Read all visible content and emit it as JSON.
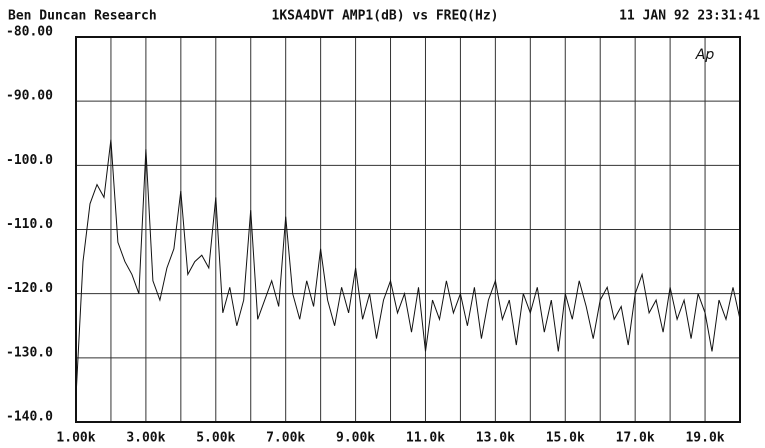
{
  "chart_data": {
    "type": "line",
    "header_left": "Ben Duncan Research",
    "title": "1KSA4DVT AMP1(dB) vs FREQ(Hz)",
    "timestamp": "11 JAN 92 23:31:41",
    "logo": "Ap",
    "color": "#111111",
    "grid": true,
    "xlim": [
      1000,
      20000
    ],
    "ylim": [
      -140,
      -80
    ],
    "xticks": [
      {
        "value": 1000,
        "label": "1.00k"
      },
      {
        "value": 3000,
        "label": "3.00k"
      },
      {
        "value": 5000,
        "label": "5.00k"
      },
      {
        "value": 7000,
        "label": "7.00k"
      },
      {
        "value": 9000,
        "label": "9.00k"
      },
      {
        "value": 11000,
        "label": "11.0k"
      },
      {
        "value": 13000,
        "label": "13.0k"
      },
      {
        "value": 15000,
        "label": "15.0k"
      },
      {
        "value": 17000,
        "label": "17.0k"
      },
      {
        "value": 19000,
        "label": "19.0k"
      }
    ],
    "xgrid": [
      2000,
      4000,
      6000,
      8000,
      10000,
      12000,
      14000,
      16000,
      18000
    ],
    "yticks": [
      {
        "value": -80,
        "label": "-80.00"
      },
      {
        "value": -90,
        "label": "-90.00"
      },
      {
        "value": -100,
        "label": "-100.0"
      },
      {
        "value": -110,
        "label": "-110.0"
      },
      {
        "value": -120,
        "label": "-120.0"
      },
      {
        "value": -130,
        "label": "-130.0"
      },
      {
        "value": -140,
        "label": "-140.0"
      }
    ],
    "x": [
      1000,
      1200,
      1400,
      1600,
      1800,
      2000,
      2200,
      2400,
      2600,
      2800,
      3000,
      3200,
      3400,
      3600,
      3800,
      4000,
      4200,
      4400,
      4600,
      4800,
      5000,
      5200,
      5400,
      5600,
      5800,
      6000,
      6200,
      6400,
      6600,
      6800,
      7000,
      7200,
      7400,
      7600,
      7800,
      8000,
      8200,
      8400,
      8600,
      8800,
      9000,
      9200,
      9400,
      9600,
      9800,
      10000,
      10200,
      10400,
      10600,
      10800,
      11000,
      11200,
      11400,
      11600,
      11800,
      12000,
      12200,
      12400,
      12600,
      12800,
      13000,
      13200,
      13400,
      13600,
      13800,
      14000,
      14200,
      14400,
      14600,
      14800,
      15000,
      15200,
      15400,
      15600,
      15800,
      16000,
      16200,
      16400,
      16600,
      16800,
      17000,
      17200,
      17400,
      17600,
      17800,
      18000,
      18200,
      18400,
      18600,
      18800,
      19000,
      19200,
      19400,
      19600,
      19800,
      20000
    ],
    "values": [
      -136,
      -115,
      -106,
      -103,
      -105,
      -96,
      -112,
      -115,
      -117,
      -120,
      -97.5,
      -118,
      -121,
      -116,
      -113,
      -104,
      -117,
      -115,
      -114,
      -116,
      -105,
      -123,
      -119,
      -125,
      -121,
      -107,
      -124,
      -121,
      -118,
      -122,
      -108,
      -120,
      -124,
      -118,
      -122,
      -113,
      -121,
      -125,
      -119,
      -123,
      -116,
      -124,
      -120,
      -127,
      -121,
      -118,
      -123,
      -120,
      -126,
      -119,
      -129,
      -121,
      -124,
      -118,
      -123,
      -120,
      -125,
      -119,
      -127,
      -121,
      -118,
      -124,
      -121,
      -128,
      -120,
      -123,
      -119,
      -126,
      -121,
      -129,
      -120,
      -124,
      -118,
      -122,
      -127,
      -121,
      -119,
      -124,
      -122,
      -128,
      -120,
      -117,
      -123,
      -121,
      -126,
      -119,
      -124,
      -121,
      -127,
      -120,
      -123,
      -129,
      -121,
      -124,
      -119,
      -124
    ]
  }
}
